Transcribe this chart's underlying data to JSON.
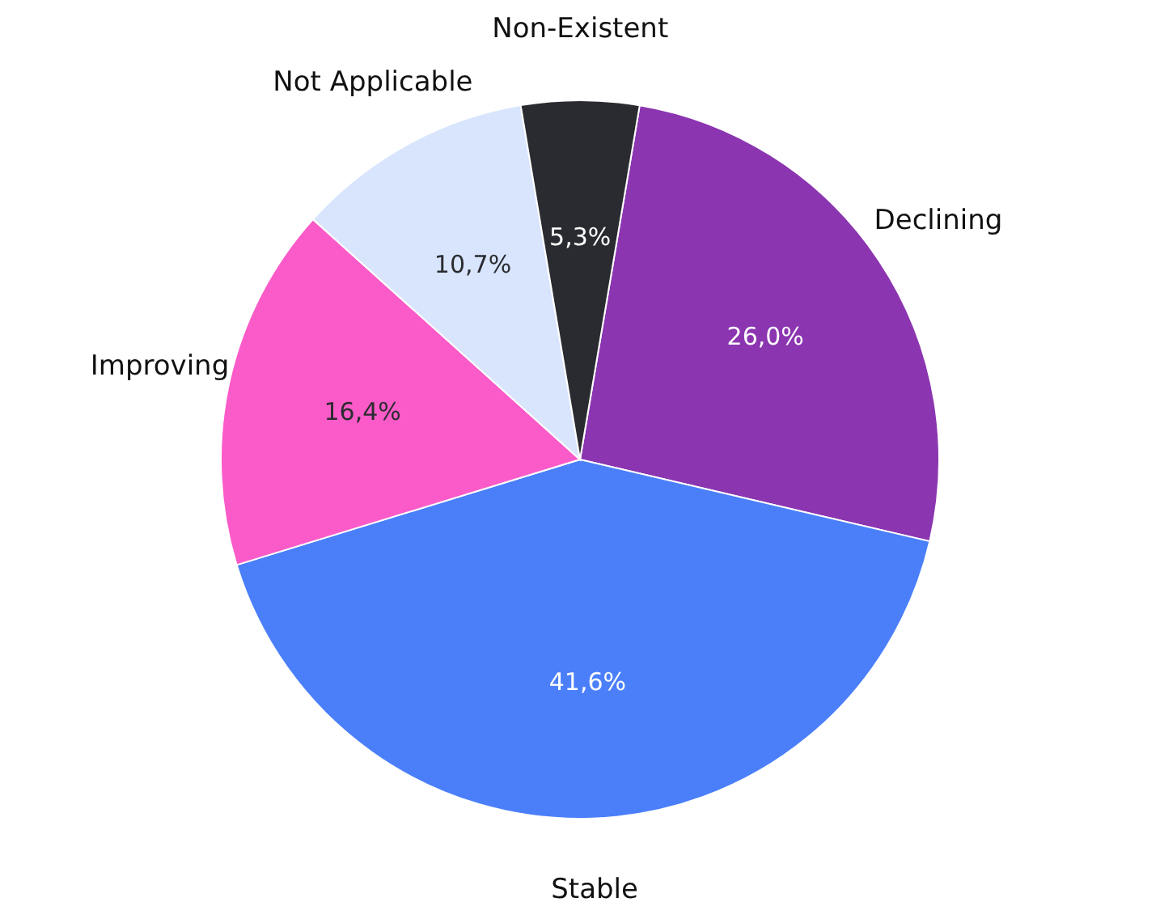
{
  "chart_data": {
    "type": "pie",
    "categories": [
      "Declining",
      "Stable",
      "Improving",
      "Not Applicable",
      "Non-Existent"
    ],
    "values": [
      26.0,
      41.6,
      16.4,
      10.7,
      5.3
    ],
    "colors": [
      "#8b35b0",
      "#4b7ffa",
      "#fb5bc8",
      "#d8e5fd",
      "#2a2b30"
    ],
    "value_labels": [
      "26,0%",
      "41,6%",
      "16,4%",
      "10,7%",
      "5,3%"
    ]
  }
}
